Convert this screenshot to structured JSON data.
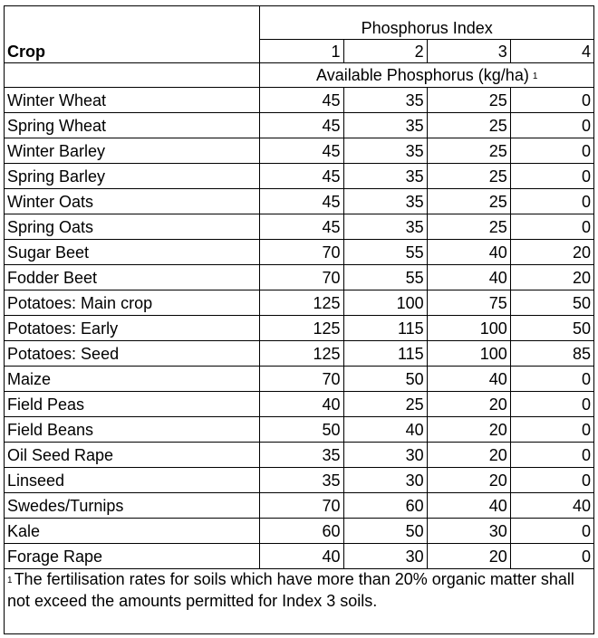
{
  "table": {
    "crop_header": "Crop",
    "index_header": "Phosphorus Index",
    "index_levels": [
      "1",
      "2",
      "3",
      "4"
    ],
    "subheader": "Available Phosphorus (kg/ha)",
    "subheader_footnote_mark": "1",
    "rows": [
      {
        "crop": "Winter Wheat",
        "values": [
          "45",
          "35",
          "25",
          "0"
        ]
      },
      {
        "crop": "Spring Wheat",
        "values": [
          "45",
          "35",
          "25",
          "0"
        ]
      },
      {
        "crop": "Winter Barley",
        "values": [
          "45",
          "35",
          "25",
          "0"
        ]
      },
      {
        "crop": "Spring Barley",
        "values": [
          "45",
          "35",
          "25",
          "0"
        ]
      },
      {
        "crop": "Winter Oats",
        "values": [
          "45",
          "35",
          "25",
          "0"
        ]
      },
      {
        "crop": "Spring Oats",
        "values": [
          "45",
          "35",
          "25",
          "0"
        ]
      },
      {
        "crop": "Sugar Beet",
        "values": [
          "70",
          "55",
          "40",
          "20"
        ]
      },
      {
        "crop": "Fodder Beet",
        "values": [
          "70",
          "55",
          "40",
          "20"
        ]
      },
      {
        "crop": "Potatoes: Main crop",
        "values": [
          "125",
          "100",
          "75",
          "50"
        ]
      },
      {
        "crop": "Potatoes: Early",
        "values": [
          "125",
          "115",
          "100",
          "50"
        ]
      },
      {
        "crop": "Potatoes: Seed",
        "values": [
          "125",
          "115",
          "100",
          "85"
        ]
      },
      {
        "crop": "Maize",
        "values": [
          "70",
          "50",
          "40",
          "0"
        ]
      },
      {
        "crop": "Field Peas",
        "values": [
          "40",
          "25",
          "20",
          "0"
        ]
      },
      {
        "crop": "Field Beans",
        "values": [
          "50",
          "40",
          "20",
          "0"
        ]
      },
      {
        "crop": "Oil Seed Rape",
        "values": [
          "35",
          "30",
          "20",
          "0"
        ]
      },
      {
        "crop": "Linseed",
        "values": [
          "35",
          "30",
          "20",
          "0"
        ]
      },
      {
        "crop": "Swedes/Turnips",
        "values": [
          "70",
          "60",
          "40",
          "40"
        ]
      },
      {
        "crop": "Kale",
        "values": [
          "60",
          "50",
          "30",
          "0"
        ]
      },
      {
        "crop": "Forage Rape",
        "values": [
          "40",
          "30",
          "20",
          "0"
        ]
      }
    ]
  },
  "footnote": {
    "mark": "1",
    "text": "The fertilisation rates for soils which have more than 20% organic matter shall not exceed the amounts permitted for Index 3 soils."
  }
}
